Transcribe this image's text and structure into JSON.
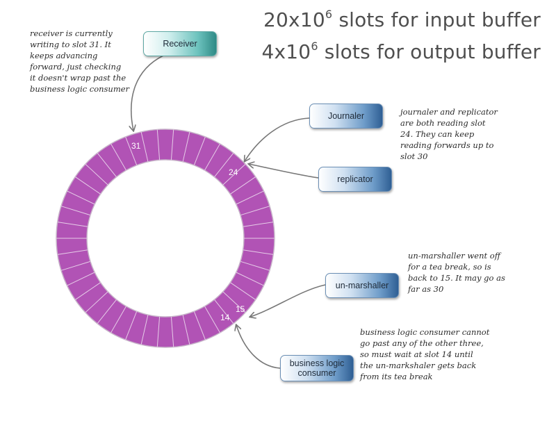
{
  "title": {
    "line1_pre": "20x10",
    "line1_sup": "6",
    "line1_post": " slots for input buffer",
    "line2_pre": "4x10",
    "line2_sup": "6",
    "line2_post": " slots for output buffer"
  },
  "ring": {
    "color": "#b153b5",
    "slots": {
      "s31": "31",
      "s24": "24",
      "s15": "15",
      "s14": "14"
    }
  },
  "boxes": {
    "receiver": "Receiver",
    "journaler": "Journaler",
    "replicator": "replicator",
    "unmarshaller": "un-marshaller",
    "business_line1": "business logic",
    "business_line2": "consumer"
  },
  "notes": {
    "receiver": [
      "receiver is currently",
      "writing to slot 31. It",
      "keeps advancing",
      "forward, just checking",
      "it doesn't wrap past the",
      "business logic consumer"
    ],
    "journaler": [
      "journaler and replicator",
      "are both reading slot",
      "24. They can keep",
      "reading forwards up to",
      "slot 30"
    ],
    "unmarshaller": [
      "un-marshaller went off",
      "for a tea break, so is",
      "back to 15. It may go as",
      "far as 30"
    ],
    "business": [
      "business logic consumer cannot",
      "go past any of the other three,",
      "so must wait at slot 14 until",
      "the un-markshaler gets back",
      "from its tea break"
    ]
  }
}
